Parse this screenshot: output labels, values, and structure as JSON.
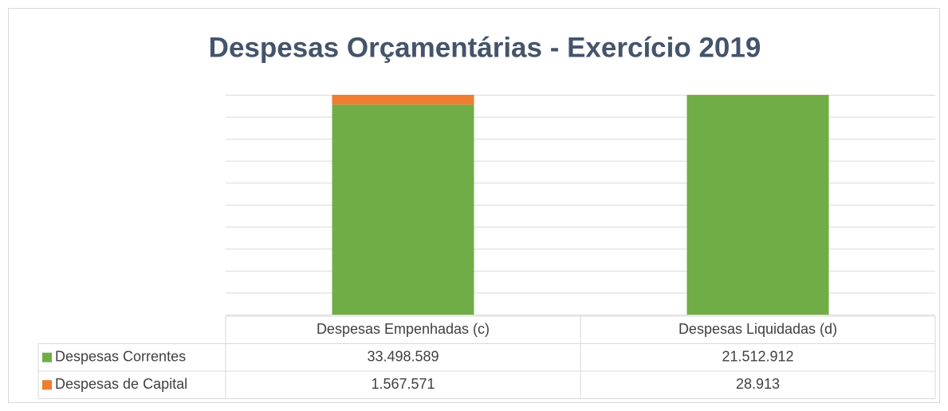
{
  "chart_data": {
    "type": "bar",
    "stacking": "percent",
    "title": "Despesas Orçamentárias - Exercício 2019",
    "categories": [
      "Despesas Empenhadas (c)",
      "Despesas Liquidadas (d)"
    ],
    "series": [
      {
        "name": "Despesas Correntes",
        "color": "#70ad47",
        "values": [
          33498589,
          21512912
        ],
        "value_labels": [
          "33.498.589",
          "21.512.912"
        ]
      },
      {
        "name": "Despesas de Capital",
        "color": "#ed7d31",
        "values": [
          1567571,
          28913
        ],
        "value_labels": [
          "1.567.571",
          "28.913"
        ]
      }
    ],
    "ylim": [
      0,
      100
    ],
    "yticks": [
      0,
      10,
      20,
      30,
      40,
      50,
      60,
      70,
      80,
      90,
      100
    ],
    "grid": true,
    "data_table": true
  }
}
